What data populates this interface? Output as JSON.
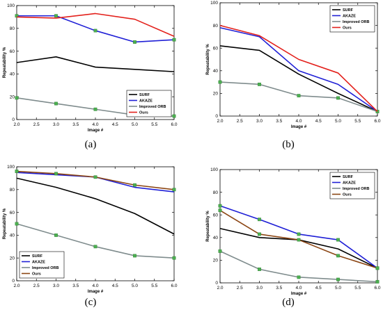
{
  "chart_data": [
    {
      "panel": "a",
      "caption": "(a)",
      "type": "line",
      "xlabel": "Image #",
      "ylabel": "Repeatability %",
      "xlim": [
        2.0,
        6.0
      ],
      "ylim": [
        0,
        100
      ],
      "xticks": [
        "2.0",
        "2.5",
        "3.0",
        "3.5",
        "4.0",
        "4.5",
        "5.0",
        "5.5",
        "6.0"
      ],
      "yticks": [
        "0",
        "20",
        "40",
        "60",
        "80",
        "100"
      ],
      "legend_position": "bottom-right",
      "series": [
        {
          "name": "SURF",
          "color": "#000000",
          "marker": false,
          "x": [
            2,
            3,
            4,
            5,
            6
          ],
          "values": [
            50,
            55,
            46,
            44,
            42
          ]
        },
        {
          "name": "AKAZE",
          "color": "#1f1fd6",
          "marker": true,
          "x": [
            2,
            3,
            4,
            5,
            6
          ],
          "values": [
            91,
            91,
            78,
            68,
            70
          ]
        },
        {
          "name": "Improved ORB",
          "color": "#7f8c8d",
          "marker": true,
          "x": [
            2,
            3,
            4,
            5,
            6
          ],
          "values": [
            19,
            14,
            9,
            4,
            3
          ]
        },
        {
          "name": "Ours",
          "color": "#e3201b",
          "marker": false,
          "x": [
            2,
            3,
            4,
            5,
            6
          ],
          "values": [
            90,
            89,
            93,
            88,
            73
          ]
        }
      ]
    },
    {
      "panel": "b",
      "caption": "(b)",
      "type": "line",
      "xlabel": "Image #",
      "ylabel": "Repeatability %",
      "xlim": [
        2.0,
        6.0
      ],
      "ylim": [
        0,
        100
      ],
      "xticks": [
        "2.0",
        "2.5",
        "3.0",
        "3.5",
        "4.0",
        "4.5",
        "5.0",
        "5.5",
        "6.0"
      ],
      "yticks": [
        "0",
        "20",
        "40",
        "60",
        "80",
        "100"
      ],
      "legend_position": "top-right",
      "series": [
        {
          "name": "SURF",
          "color": "#000000",
          "marker": false,
          "x": [
            2,
            3,
            4,
            5,
            6
          ],
          "values": [
            62,
            58,
            37,
            20,
            4
          ]
        },
        {
          "name": "AKAZE",
          "color": "#1f1fd6",
          "marker": false,
          "x": [
            2,
            3,
            4,
            5,
            6
          ],
          "values": [
            78,
            70,
            40,
            28,
            4
          ]
        },
        {
          "name": "Improved ORB",
          "color": "#7f8c8d",
          "marker": true,
          "x": [
            2,
            3,
            4,
            5,
            6
          ],
          "values": [
            30,
            28,
            18,
            16,
            4
          ]
        },
        {
          "name": "Ours",
          "color": "#e3201b",
          "marker": false,
          "x": [
            2,
            3,
            4,
            5,
            6
          ],
          "values": [
            80,
            71,
            50,
            38,
            4
          ]
        }
      ]
    },
    {
      "panel": "c",
      "caption": "(c)",
      "type": "line",
      "xlabel": "Image #",
      "ylabel": "Repeatability %",
      "xlim": [
        2.0,
        6.0
      ],
      "ylim": [
        0,
        100
      ],
      "xticks": [
        "2.0",
        "2.5",
        "3.0",
        "3.5",
        "4.0",
        "4.5",
        "5.0",
        "5.5",
        "6.0"
      ],
      "yticks": [
        "0",
        "20",
        "40",
        "60",
        "80",
        "100"
      ],
      "legend_position": "bottom-left",
      "series": [
        {
          "name": "SURF",
          "color": "#000000",
          "marker": false,
          "x": [
            2,
            3,
            4,
            5,
            6
          ],
          "values": [
            90,
            82,
            72,
            59,
            41
          ]
        },
        {
          "name": "AKAZE",
          "color": "#1f1fd6",
          "marker": false,
          "x": [
            2,
            3,
            4,
            5,
            6
          ],
          "values": [
            95,
            93,
            91,
            82,
            78
          ]
        },
        {
          "name": "Improved ORB",
          "color": "#7f8c8d",
          "marker": true,
          "x": [
            2,
            3,
            4,
            5,
            6
          ],
          "values": [
            50,
            40,
            30,
            22,
            20
          ]
        },
        {
          "name": "Ours",
          "color": "#8b4513",
          "marker": true,
          "x": [
            2,
            3,
            4,
            5,
            6
          ],
          "values": [
            96,
            94,
            91,
            84,
            80
          ]
        }
      ]
    },
    {
      "panel": "d",
      "caption": "(d)",
      "type": "line",
      "xlabel": "Image #",
      "ylabel": "Repeatability %",
      "xlim": [
        2.0,
        6.0
      ],
      "ylim": [
        0,
        100
      ],
      "xticks": [
        "2.0",
        "2.5",
        "3.0",
        "3.5",
        "4.0",
        "4.5",
        "5.0",
        "5.5",
        "6.0"
      ],
      "yticks": [
        "0",
        "20",
        "40",
        "60",
        "80",
        "100"
      ],
      "legend_position": "top-right",
      "series": [
        {
          "name": "SURF",
          "color": "#000000",
          "marker": false,
          "x": [
            2,
            3,
            4,
            5,
            6
          ],
          "values": [
            48,
            40,
            38,
            30,
            13
          ]
        },
        {
          "name": "AKAZE",
          "color": "#1f1fd6",
          "marker": true,
          "x": [
            2,
            3,
            4,
            5,
            6
          ],
          "values": [
            68,
            56,
            43,
            38,
            13
          ]
        },
        {
          "name": "Improved ORB",
          "color": "#7f8c8d",
          "marker": true,
          "x": [
            2,
            3,
            4,
            5,
            6
          ],
          "values": [
            28,
            12,
            5,
            3,
            1
          ]
        },
        {
          "name": "Ours",
          "color": "#8b4513",
          "marker": true,
          "x": [
            2,
            3,
            4,
            5,
            6
          ],
          "values": [
            64,
            43,
            38,
            24,
            13
          ]
        }
      ]
    }
  ]
}
